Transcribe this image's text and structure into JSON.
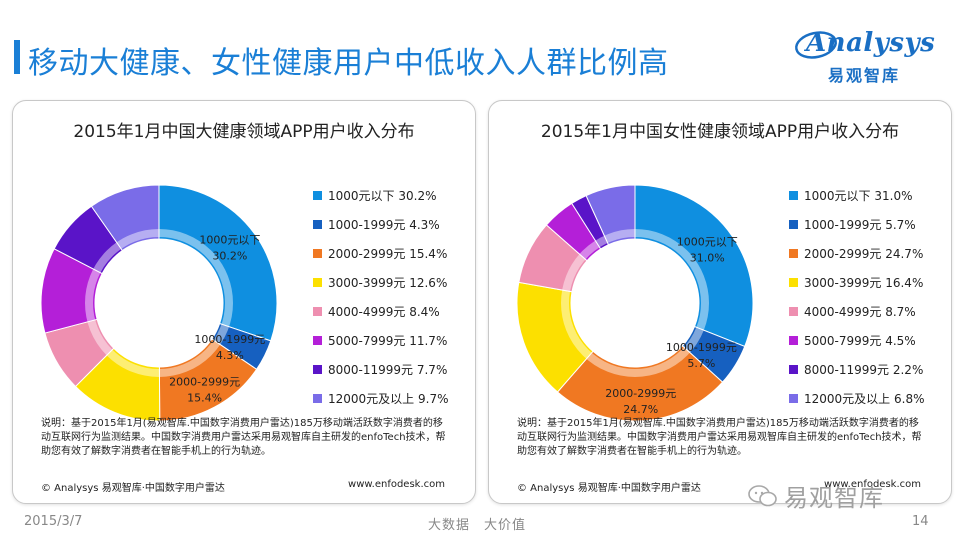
{
  "page": {
    "title": "移动大健康、女性健康用户中低收入人群比例高",
    "logo_word": "Analysys",
    "logo_cn": "易观智库",
    "date": "2015/3/7",
    "tagline": "大数据　大价值",
    "page_number": "14",
    "watermark": "易观智库"
  },
  "colors": {
    "brand": "#1a7fd6",
    "series": [
      "#0f8fe0",
      "#1660c0",
      "#f07822",
      "#fce000",
      "#ee8fb0",
      "#b41fd8",
      "#5a14c8",
      "#7a6ce8"
    ]
  },
  "chart_data": [
    {
      "type": "pie",
      "title": "2015年1月中国大健康领域APP用户收入分布",
      "categories": [
        "1000元以下",
        "1000-1999元",
        "2000-2999元",
        "3000-3999元",
        "4000-4999元",
        "5000-7999元",
        "8000-11999元",
        "12000元及以上"
      ],
      "values": [
        30.2,
        4.3,
        15.4,
        12.6,
        8.4,
        11.7,
        7.7,
        9.7
      ],
      "legend": [
        "1000元以下 30.2%",
        "1000-1999元 4.3%",
        "2000-2999元 15.4%",
        "3000-3999元 12.6%",
        "4000-4999元 8.4%",
        "5000-7999元 11.7%",
        "8000-11999元 7.7%",
        "12000元及以上 9.7%"
      ],
      "slice_labels": [
        {
          "name": "1000元以下",
          "value": "30.2%"
        },
        {
          "name": "1000-1999元",
          "value": "4.3%"
        },
        {
          "name": "2000-2999元",
          "value": "15.4%"
        }
      ],
      "legend_position": "right",
      "note": "说明：基于2015年1月(易观智库.中国数字消费用户雷达)185万移动端活跃数字消费者的移动互联网行为监测结果。中国数字消费用户雷达采用易观智库自主研发的enfoTech技术，帮助您有效了解数字消费者在智能手机上的行为轨迹。",
      "source": "© Analysys 易观智库·中国数字用户雷达",
      "site": "www.enfodesk.com"
    },
    {
      "type": "pie",
      "title": "2015年1月中国女性健康领域APP用户收入分布",
      "categories": [
        "1000元以下",
        "1000-1999元",
        "2000-2999元",
        "3000-3999元",
        "4000-4999元",
        "5000-7999元",
        "8000-11999元",
        "12000元及以上"
      ],
      "values": [
        31.0,
        5.7,
        24.7,
        16.4,
        8.7,
        4.5,
        2.2,
        6.8
      ],
      "legend": [
        "1000元以下 31.0%",
        "1000-1999元 5.7%",
        "2000-2999元 24.7%",
        "3000-3999元 16.4%",
        "4000-4999元 8.7%",
        "5000-7999元 4.5%",
        "8000-11999元 2.2%",
        "12000元及以上 6.8%"
      ],
      "slice_labels": [
        {
          "name": "1000元以下",
          "value": "31.0%"
        },
        {
          "name": "1000-1999元",
          "value": "5.7%"
        },
        {
          "name": "2000-2999元",
          "value": "24.7%"
        }
      ],
      "legend_position": "right",
      "note": "说明：基于2015年1月(易观智库.中国数字消费用户雷达)185万移动端活跃数字消费者的移动互联网行为监测结果。中国数字消费用户雷达采用易观智库自主研发的enfoTech技术，帮助您有效了解数字消费者在智能手机上的行为轨迹。",
      "source": "© Analysys 易观智库·中国数字用户雷达",
      "site": "www.enfodesk.com"
    }
  ]
}
